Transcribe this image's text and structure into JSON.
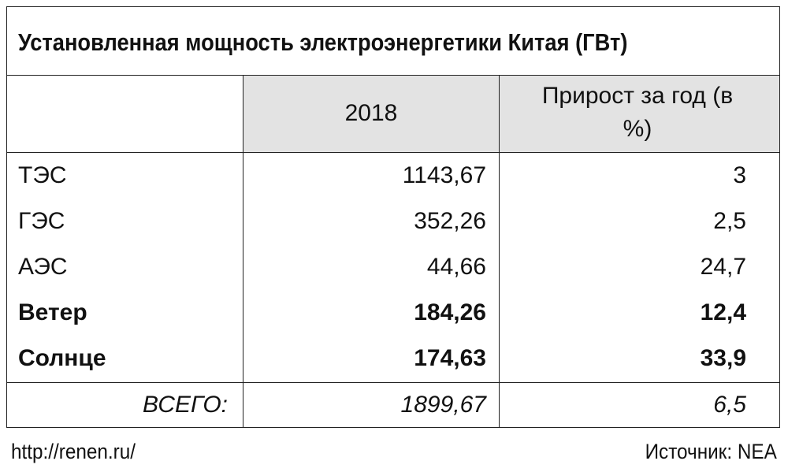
{
  "title": "Установленная мощность электроэнергетики Китая (ГВт)",
  "table": {
    "columns": [
      "2018",
      "Прирост за год (в %)"
    ],
    "rows": [
      [
        "ТЭС",
        "1143,67",
        "3"
      ],
      [
        "ГЭС",
        "352,26",
        "2,5"
      ],
      [
        "АЭС",
        "44,66",
        "24,7"
      ],
      [
        "Ветер",
        "184,26",
        "12,4"
      ],
      [
        "Солнце",
        "174,63",
        "33,9"
      ]
    ],
    "total": [
      "ВСЕГО:",
      "1899,67",
      "6,5"
    ]
  },
  "footer": {
    "url": "http://renen.ru/",
    "source": "Источник: NEA"
  }
}
